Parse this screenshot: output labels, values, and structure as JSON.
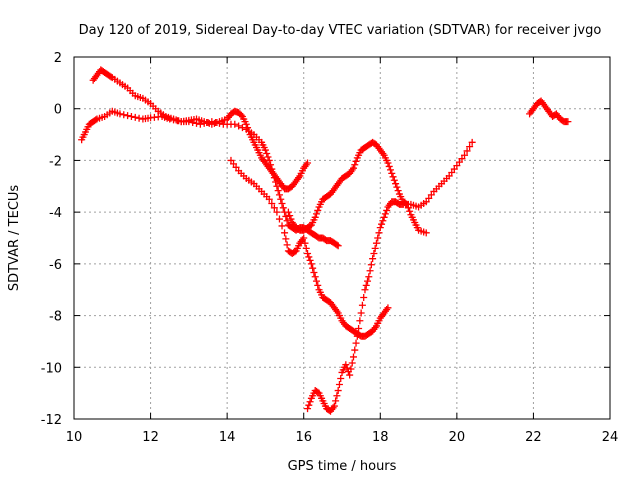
{
  "chart_data": {
    "type": "scatter",
    "title": "Day 120 of 2019, Sidereal Day-to-day VTEC variation (SDTVAR) for receiver jvgo",
    "xlabel": "GPS time / hours",
    "ylabel": "SDTVAR / TECUs",
    "xlim": [
      10,
      24
    ],
    "ylim": [
      -12,
      2
    ],
    "xticks": [
      10,
      12,
      14,
      16,
      18,
      20,
      22,
      24
    ],
    "yticks": [
      2,
      0,
      -2,
      -4,
      -6,
      -8,
      -10,
      -12
    ],
    "xtick_labels": [
      "10",
      "12",
      "14",
      "16",
      "18",
      "20",
      "22",
      "24"
    ],
    "ytick_labels": [
      "2",
      "0",
      "-2",
      "-4",
      "-6",
      "-8",
      "-10",
      "-12"
    ],
    "grid": true,
    "marker": "+",
    "color": "#ff0000",
    "series": [
      {
        "x": [
          10.2,
          10.3,
          10.4,
          10.5,
          10.6,
          10.8,
          11.0,
          11.2,
          11.5,
          11.8,
          12.0,
          12.3,
          12.5,
          12.8,
          13.0,
          13.2,
          13.4,
          13.6,
          13.8,
          14.0,
          14.1,
          14.2,
          14.3,
          14.4,
          14.5,
          14.6,
          14.7,
          14.8,
          14.9,
          15.0,
          15.1,
          15.2,
          15.3,
          15.4,
          15.5,
          15.6,
          15.7,
          15.8,
          15.9,
          16.0,
          16.1
        ],
        "y": [
          -1.2,
          -0.9,
          -0.6,
          -0.5,
          -0.4,
          -0.3,
          -0.1,
          -0.2,
          -0.3,
          -0.4,
          -0.35,
          -0.3,
          -0.4,
          -0.5,
          -0.45,
          -0.4,
          -0.5,
          -0.6,
          -0.5,
          -0.4,
          -0.2,
          -0.1,
          -0.15,
          -0.3,
          -0.6,
          -1.0,
          -1.3,
          -1.6,
          -1.9,
          -2.1,
          -2.3,
          -2.5,
          -2.7,
          -2.9,
          -3.1,
          -3.1,
          -3.0,
          -2.8,
          -2.6,
          -2.3,
          -2.1
        ]
      },
      {
        "x": [
          10.5,
          10.6,
          10.7,
          10.8,
          10.9,
          11.0,
          11.2,
          11.4,
          11.6,
          11.8,
          12.0,
          12.2,
          12.4,
          12.6,
          12.8,
          13.0,
          13.3,
          13.6,
          13.9,
          14.2,
          14.5,
          14.7,
          14.9,
          15.0,
          15.1,
          15.2,
          15.3,
          15.4,
          15.5,
          15.6,
          15.7,
          15.8,
          15.9,
          16.0,
          16.1,
          16.2,
          16.3,
          16.4,
          16.5,
          16.6,
          16.7,
          16.8,
          16.9
        ],
        "y": [
          1.1,
          1.3,
          1.5,
          1.4,
          1.3,
          1.2,
          1.0,
          0.8,
          0.5,
          0.4,
          0.2,
          -0.1,
          -0.3,
          -0.4,
          -0.5,
          -0.5,
          -0.6,
          -0.5,
          -0.6,
          -0.6,
          -0.8,
          -1.0,
          -1.3,
          -1.6,
          -2.0,
          -2.5,
          -3.0,
          -3.5,
          -4.0,
          -4.5,
          -4.6,
          -4.7,
          -4.6,
          -4.6,
          -4.7,
          -4.8,
          -4.9,
          -5.0,
          -5.0,
          -5.1,
          -5.1,
          -5.2,
          -5.3
        ]
      },
      {
        "x": [
          14.1,
          14.3,
          14.5,
          14.7,
          14.9,
          15.1,
          15.3,
          15.5,
          15.6,
          15.7,
          15.8,
          15.9,
          16.0,
          16.1,
          16.2,
          16.3,
          16.4,
          16.5,
          16.6,
          16.7,
          16.8,
          16.9,
          17.0,
          17.1,
          17.2,
          17.3,
          17.4,
          17.5,
          17.6,
          17.7,
          17.8,
          17.9,
          18.0,
          18.1,
          18.2
        ],
        "y": [
          -2.0,
          -2.4,
          -2.7,
          -2.9,
          -3.2,
          -3.5,
          -4.0,
          -4.8,
          -5.5,
          -5.6,
          -5.5,
          -5.2,
          -5.0,
          -5.6,
          -6.0,
          -6.5,
          -7.0,
          -7.3,
          -7.4,
          -7.5,
          -7.7,
          -7.9,
          -8.2,
          -8.4,
          -8.5,
          -8.6,
          -8.7,
          -8.8,
          -8.8,
          -8.7,
          -8.6,
          -8.4,
          -8.1,
          -7.9,
          -7.7
        ]
      },
      {
        "x": [
          15.6,
          15.7,
          15.8,
          15.9,
          16.0,
          16.1,
          16.2,
          16.3,
          16.4,
          16.5,
          16.6,
          16.7,
          16.8,
          16.9,
          17.0,
          17.1,
          17.2,
          17.3,
          17.4,
          17.5,
          17.6,
          17.7,
          17.8,
          17.9,
          18.0,
          18.1,
          18.2,
          18.3,
          18.4,
          18.5,
          18.6,
          18.7,
          18.8,
          18.9,
          19.0,
          19.2
        ],
        "y": [
          -4.0,
          -4.4,
          -4.6,
          -4.7,
          -4.7,
          -4.6,
          -4.5,
          -4.2,
          -3.8,
          -3.5,
          -3.4,
          -3.3,
          -3.1,
          -2.9,
          -2.7,
          -2.6,
          -2.5,
          -2.3,
          -1.9,
          -1.6,
          -1.5,
          -1.4,
          -1.3,
          -1.4,
          -1.6,
          -1.8,
          -2.1,
          -2.5,
          -2.9,
          -3.3,
          -3.6,
          -3.7,
          -4.1,
          -4.4,
          -4.7,
          -4.8
        ]
      },
      {
        "x": [
          16.1,
          16.2,
          16.3,
          16.4,
          16.5,
          16.6,
          16.7,
          16.8,
          16.9,
          17.0,
          17.1,
          17.2,
          17.3,
          17.4,
          17.5,
          17.6,
          17.7,
          17.8,
          17.9,
          18.0,
          18.1,
          18.2,
          18.3,
          18.4,
          18.5,
          18.6,
          18.8,
          19.0,
          19.2,
          19.4,
          19.6,
          19.8,
          20.0,
          20.2,
          20.4
        ],
        "y": [
          -11.6,
          -11.2,
          -10.9,
          -11.0,
          -11.3,
          -11.6,
          -11.7,
          -11.5,
          -10.9,
          -10.2,
          -9.9,
          -10.3,
          -9.6,
          -8.8,
          -7.9,
          -7.0,
          -6.5,
          -5.8,
          -5.2,
          -4.6,
          -4.2,
          -3.8,
          -3.6,
          -3.6,
          -3.7,
          -3.7,
          -3.7,
          -3.8,
          -3.6,
          -3.2,
          -2.9,
          -2.6,
          -2.2,
          -1.8,
          -1.3
        ]
      },
      {
        "x": [
          21.9,
          22.0,
          22.1,
          22.2,
          22.3,
          22.4,
          22.5,
          22.6,
          22.7,
          22.8,
          22.9
        ],
        "y": [
          -0.2,
          0.0,
          0.2,
          0.3,
          0.1,
          -0.1,
          -0.3,
          -0.2,
          -0.4,
          -0.5,
          -0.5
        ]
      }
    ]
  }
}
